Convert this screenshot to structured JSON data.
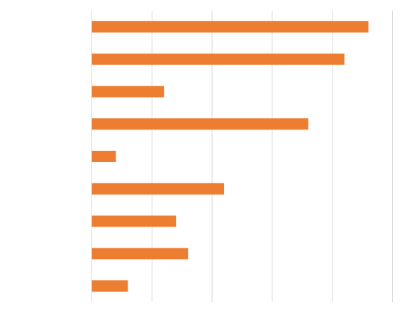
{
  "chart_data": {
    "type": "bar",
    "orientation": "horizontal",
    "categories": [
      null,
      null,
      null,
      null,
      null,
      null,
      null,
      null,
      null
    ],
    "values": [
      4.6,
      4.2,
      1.2,
      3.6,
      0.4,
      2.2,
      1.4,
      1.6,
      0.6
    ],
    "color": "#ed7d31",
    "xlim": [
      0,
      5
    ],
    "xticks": [
      0,
      1,
      2,
      3,
      4,
      5
    ],
    "grid": true
  }
}
